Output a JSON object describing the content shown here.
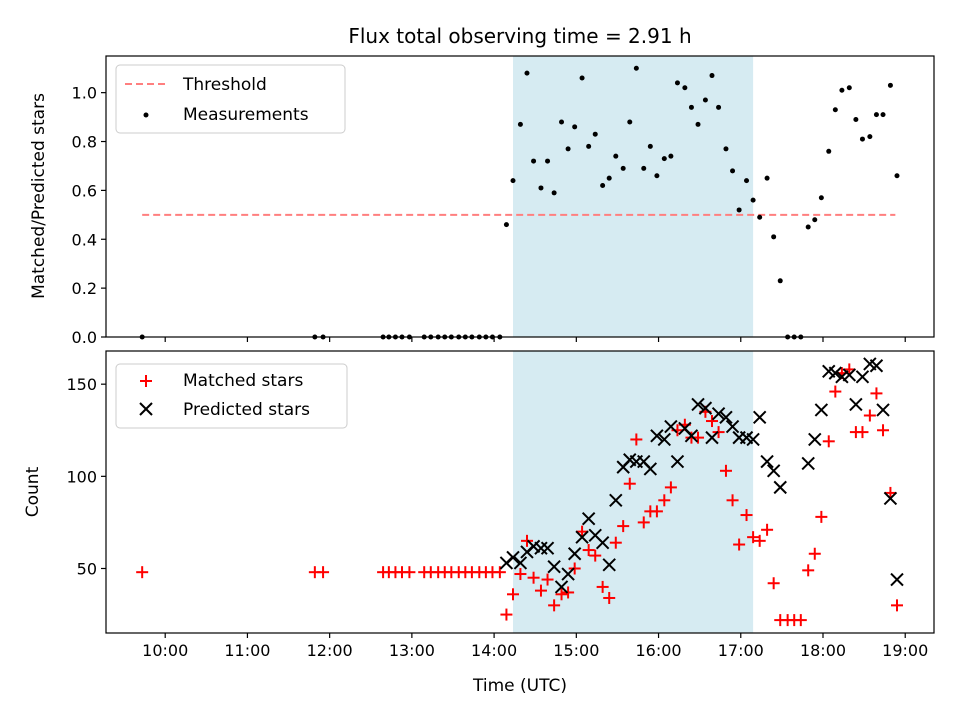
{
  "title": "Flux total observing time = 2.91 h",
  "colors": {
    "shade": "#add8e6",
    "threshold": "#ff7f7f",
    "matched": "#ff0000",
    "predicted": "#000000",
    "measurement": "#000000"
  },
  "chart_data": [
    {
      "type": "scatter",
      "ylabel": "Matched/Predicted stars",
      "xlim": [
        9.28,
        19.35
      ],
      "ylim": [
        0,
        1.15
      ],
      "yticks": [
        0.0,
        0.2,
        0.4,
        0.6,
        0.8,
        1.0
      ],
      "ytick_labels": [
        "0.0",
        "0.2",
        "0.4",
        "0.6",
        "0.8",
        "1.0"
      ],
      "shaded_region": [
        14.23,
        17.15
      ],
      "legend": {
        "placement": "top-left",
        "entries": [
          "Threshold",
          "Measurements"
        ]
      },
      "threshold": {
        "name": "Threshold",
        "value": 0.5,
        "x_range": [
          9.72,
          18.88
        ],
        "style": "dashed"
      },
      "series": [
        {
          "name": "Measurements",
          "marker": "dot",
          "points": [
            [
              9.72,
              0.0
            ],
            [
              11.82,
              0.0
            ],
            [
              11.92,
              0.0
            ],
            [
              12.65,
              0.0
            ],
            [
              12.72,
              0.0
            ],
            [
              12.8,
              0.0
            ],
            [
              12.88,
              0.0
            ],
            [
              12.97,
              0.0
            ],
            [
              13.15,
              0.0
            ],
            [
              13.23,
              0.0
            ],
            [
              13.32,
              0.0
            ],
            [
              13.4,
              0.0
            ],
            [
              13.48,
              0.0
            ],
            [
              13.57,
              0.0
            ],
            [
              13.65,
              0.0
            ],
            [
              13.73,
              0.0
            ],
            [
              13.82,
              0.0
            ],
            [
              13.9,
              0.0
            ],
            [
              13.98,
              0.0
            ],
            [
              14.07,
              0.0
            ],
            [
              14.15,
              0.46
            ],
            [
              14.23,
              0.64
            ],
            [
              14.32,
              0.87
            ],
            [
              14.4,
              1.08
            ],
            [
              14.48,
              0.72
            ],
            [
              14.57,
              0.61
            ],
            [
              14.65,
              0.72
            ],
            [
              14.73,
              0.59
            ],
            [
              14.82,
              0.88
            ],
            [
              14.9,
              0.77
            ],
            [
              14.98,
              0.86
            ],
            [
              15.07,
              1.06
            ],
            [
              15.15,
              0.78
            ],
            [
              15.23,
              0.83
            ],
            [
              15.32,
              0.62
            ],
            [
              15.4,
              0.65
            ],
            [
              15.48,
              0.74
            ],
            [
              15.57,
              0.69
            ],
            [
              15.65,
              0.88
            ],
            [
              15.73,
              1.1
            ],
            [
              15.82,
              0.69
            ],
            [
              15.9,
              0.78
            ],
            [
              15.98,
              0.66
            ],
            [
              16.07,
              0.73
            ],
            [
              16.15,
              0.74
            ],
            [
              16.23,
              1.04
            ],
            [
              16.32,
              1.02
            ],
            [
              16.4,
              0.94
            ],
            [
              16.48,
              0.87
            ],
            [
              16.57,
              0.97
            ],
            [
              16.65,
              1.07
            ],
            [
              16.73,
              0.94
            ],
            [
              16.82,
              0.77
            ],
            [
              16.9,
              0.68
            ],
            [
              16.98,
              0.52
            ],
            [
              17.07,
              0.64
            ],
            [
              17.15,
              0.56
            ],
            [
              17.23,
              0.49
            ],
            [
              17.32,
              0.65
            ],
            [
              17.4,
              0.41
            ],
            [
              17.48,
              0.23
            ],
            [
              17.57,
              0.0
            ],
            [
              17.65,
              0.0
            ],
            [
              17.73,
              0.0
            ],
            [
              17.82,
              0.45
            ],
            [
              17.9,
              0.48
            ],
            [
              17.98,
              0.57
            ],
            [
              18.07,
              0.76
            ],
            [
              18.15,
              0.93
            ],
            [
              18.23,
              1.01
            ],
            [
              18.32,
              1.02
            ],
            [
              18.4,
              0.89
            ],
            [
              18.48,
              0.81
            ],
            [
              18.57,
              0.82
            ],
            [
              18.65,
              0.91
            ],
            [
              18.73,
              0.91
            ],
            [
              18.82,
              1.03
            ],
            [
              18.9,
              0.66
            ]
          ]
        }
      ]
    },
    {
      "type": "scatter",
      "xlabel": "Time (UTC)",
      "ylabel": "Count",
      "xlim": [
        9.28,
        19.35
      ],
      "ylim": [
        15,
        168
      ],
      "yticks": [
        50,
        100,
        150
      ],
      "ytick_labels": [
        "50",
        "100",
        "150"
      ],
      "xticks": [
        10,
        11,
        12,
        13,
        14,
        15,
        16,
        17,
        18,
        19
      ],
      "xtick_labels": [
        "10:00",
        "11:00",
        "12:00",
        "13:00",
        "14:00",
        "15:00",
        "16:00",
        "17:00",
        "18:00",
        "19:00"
      ],
      "shaded_region": [
        14.23,
        17.15
      ],
      "legend": {
        "placement": "top-left",
        "entries": [
          "Matched stars",
          "Predicted stars"
        ]
      },
      "series": [
        {
          "name": "Matched stars",
          "marker": "plus",
          "points": [
            [
              9.72,
              48
            ],
            [
              11.82,
              48
            ],
            [
              11.92,
              48
            ],
            [
              12.65,
              48
            ],
            [
              12.72,
              48
            ],
            [
              12.8,
              48
            ],
            [
              12.88,
              48
            ],
            [
              12.97,
              48
            ],
            [
              13.15,
              48
            ],
            [
              13.23,
              48
            ],
            [
              13.32,
              48
            ],
            [
              13.4,
              48
            ],
            [
              13.48,
              48
            ],
            [
              13.57,
              48
            ],
            [
              13.65,
              48
            ],
            [
              13.73,
              48
            ],
            [
              13.82,
              48
            ],
            [
              13.9,
              48
            ],
            [
              13.98,
              48
            ],
            [
              14.07,
              48
            ],
            [
              14.15,
              25
            ],
            [
              14.23,
              36
            ],
            [
              14.32,
              47
            ],
            [
              14.4,
              65
            ],
            [
              14.48,
              45
            ],
            [
              14.57,
              38
            ],
            [
              14.65,
              44
            ],
            [
              14.73,
              30
            ],
            [
              14.82,
              36
            ],
            [
              14.9,
              37
            ],
            [
              14.98,
              50
            ],
            [
              15.07,
              70
            ],
            [
              15.15,
              60
            ],
            [
              15.23,
              57
            ],
            [
              15.32,
              40
            ],
            [
              15.4,
              34
            ],
            [
              15.48,
              64
            ],
            [
              15.57,
              73
            ],
            [
              15.65,
              96
            ],
            [
              15.73,
              120
            ],
            [
              15.82,
              75
            ],
            [
              15.9,
              81
            ],
            [
              15.98,
              81
            ],
            [
              16.07,
              87
            ],
            [
              16.15,
              94
            ],
            [
              16.23,
              125
            ],
            [
              16.32,
              128
            ],
            [
              16.4,
              121
            ],
            [
              16.48,
              121
            ],
            [
              16.57,
              135
            ],
            [
              16.65,
              130
            ],
            [
              16.73,
              124
            ],
            [
              16.82,
              103
            ],
            [
              16.9,
              87
            ],
            [
              16.98,
              63
            ],
            [
              17.07,
              79
            ],
            [
              17.15,
              67
            ],
            [
              17.23,
              65
            ],
            [
              17.32,
              71
            ],
            [
              17.4,
              42
            ],
            [
              17.48,
              22
            ],
            [
              17.57,
              22
            ],
            [
              17.65,
              22
            ],
            [
              17.73,
              22
            ],
            [
              17.82,
              49
            ],
            [
              17.9,
              58
            ],
            [
              17.98,
              78
            ],
            [
              18.07,
              119
            ],
            [
              18.15,
              146
            ],
            [
              18.23,
              156
            ],
            [
              18.32,
              158
            ],
            [
              18.4,
              124
            ],
            [
              18.48,
              124
            ],
            [
              18.57,
              133
            ],
            [
              18.65,
              145
            ],
            [
              18.73,
              125
            ],
            [
              18.82,
              91
            ],
            [
              18.9,
              30
            ]
          ]
        },
        {
          "name": "Predicted stars",
          "marker": "x",
          "points": [
            [
              14.15,
              53
            ],
            [
              14.23,
              56
            ],
            [
              14.32,
              53
            ],
            [
              14.4,
              59
            ],
            [
              14.48,
              62
            ],
            [
              14.57,
              61
            ],
            [
              14.65,
              61
            ],
            [
              14.73,
              51
            ],
            [
              14.82,
              40
            ],
            [
              14.9,
              47
            ],
            [
              14.98,
              58
            ],
            [
              15.07,
              67
            ],
            [
              15.15,
              77
            ],
            [
              15.23,
              68
            ],
            [
              15.32,
              64
            ],
            [
              15.4,
              52
            ],
            [
              15.48,
              87
            ],
            [
              15.57,
              105
            ],
            [
              15.65,
              109
            ],
            [
              15.73,
              108
            ],
            [
              15.82,
              108
            ],
            [
              15.9,
              104
            ],
            [
              15.98,
              122
            ],
            [
              16.07,
              120
            ],
            [
              16.15,
              127
            ],
            [
              16.23,
              108
            ],
            [
              16.32,
              126
            ],
            [
              16.4,
              122
            ],
            [
              16.48,
              139
            ],
            [
              16.57,
              137
            ],
            [
              16.65,
              121
            ],
            [
              16.73,
              134
            ],
            [
              16.82,
              132
            ],
            [
              16.9,
              127
            ],
            [
              16.98,
              121
            ],
            [
              17.07,
              121
            ],
            [
              17.15,
              120
            ],
            [
              17.23,
              132
            ],
            [
              17.32,
              108
            ],
            [
              17.4,
              103
            ],
            [
              17.48,
              94
            ],
            [
              17.82,
              107
            ],
            [
              17.9,
              120
            ],
            [
              17.98,
              136
            ],
            [
              18.07,
              157
            ],
            [
              18.15,
              156
            ],
            [
              18.23,
              154
            ],
            [
              18.32,
              155
            ],
            [
              18.4,
              139
            ],
            [
              18.48,
              154
            ],
            [
              18.57,
              161
            ],
            [
              18.65,
              160
            ],
            [
              18.73,
              136
            ],
            [
              18.82,
              88
            ],
            [
              18.9,
              44
            ]
          ]
        }
      ]
    }
  ]
}
